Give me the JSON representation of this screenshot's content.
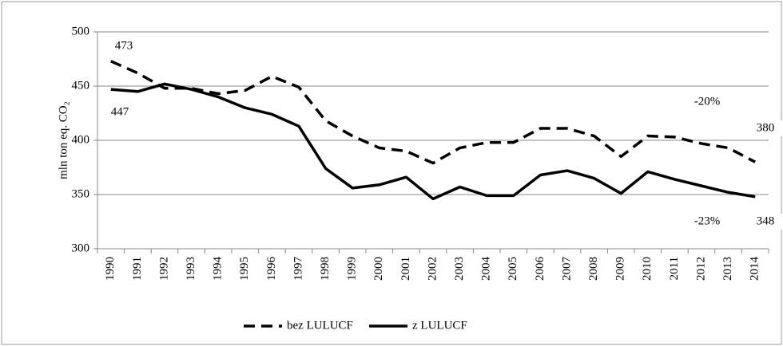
{
  "chart_data": {
    "type": "line",
    "y_label": "mln ton eq. CO₂",
    "categories": [
      "1990",
      "1991",
      "1992",
      "1993",
      "1994",
      "1995",
      "1996",
      "1997",
      "1998",
      "1999",
      "2000",
      "2001",
      "2002",
      "2003",
      "2004",
      "2005",
      "2006",
      "2007",
      "2008",
      "2009",
      "2010",
      "2011",
      "2012",
      "2013",
      "2014"
    ],
    "series": [
      {
        "name": "bez LULUCF",
        "color": "#000000",
        "dash": true,
        "values": [
          473,
          462,
          448,
          448,
          443,
          446,
          459,
          449,
          418,
          404,
          393,
          390,
          379,
          393,
          398,
          398,
          411,
          411,
          404,
          385,
          404,
          403,
          397,
          393,
          380
        ]
      },
      {
        "name": "z LULUCF",
        "color": "#000000",
        "dash": false,
        "values": [
          447,
          445,
          452,
          447,
          440,
          430,
          424,
          413,
          374,
          356,
          359,
          366,
          346,
          357,
          349,
          349,
          368,
          372,
          365,
          351,
          371,
          364,
          358,
          352,
          348
        ]
      }
    ],
    "annotations": [
      "473",
      "447",
      "-20%",
      "380",
      "-23%",
      "348"
    ],
    "ylim": [
      300,
      500
    ],
    "yticks": [
      300,
      350,
      400,
      450,
      500
    ],
    "grid": true,
    "legend": "bottom"
  }
}
